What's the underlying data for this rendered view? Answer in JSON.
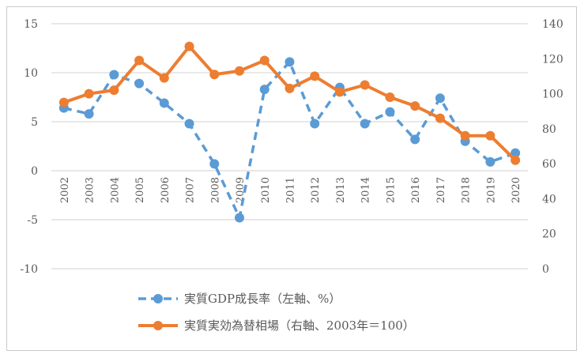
{
  "chart_data": {
    "type": "line",
    "title": "",
    "categories": [
      "2002",
      "2003",
      "2004",
      "2005",
      "2006",
      "2007",
      "2008",
      "2009",
      "2010",
      "2011",
      "2012",
      "2013",
      "2014",
      "2015",
      "2016",
      "2017",
      "2018",
      "2019",
      "2020"
    ],
    "left_axis": {
      "ylim": [
        -10,
        15
      ],
      "ticks": [
        "15",
        "10",
        "5",
        "0",
        "-5",
        "-10"
      ],
      "tick_values": [
        15,
        10,
        5,
        0,
        -5,
        -10
      ]
    },
    "right_axis": {
      "ylim": [
        0,
        140
      ],
      "ticks": [
        "140",
        "120",
        "100",
        "80",
        "60",
        "40",
        "20",
        "0"
      ],
      "tick_values": [
        140,
        120,
        100,
        80,
        60,
        40,
        20,
        0
      ]
    },
    "grid": true,
    "legend_position": "bottom",
    "series": [
      {
        "name": "実質GDP成長率（左軸、%）",
        "axis": "left",
        "style": "dashed",
        "color": "#5B9BD5",
        "values": [
          6.4,
          5.8,
          9.8,
          8.9,
          6.9,
          4.8,
          0.7,
          -4.8,
          8.3,
          11.1,
          4.8,
          8.5,
          4.8,
          6.0,
          3.2,
          7.4,
          3.0,
          0.9,
          1.8
        ]
      },
      {
        "name": "実質実効為替相場（右軸、2003年＝100）",
        "axis": "right",
        "style": "solid",
        "color": "#ED7D31",
        "values": [
          95,
          100,
          102,
          119,
          109,
          127,
          111,
          113,
          119,
          103,
          110,
          101,
          105,
          98,
          93,
          86,
          76,
          76,
          62
        ]
      }
    ]
  }
}
